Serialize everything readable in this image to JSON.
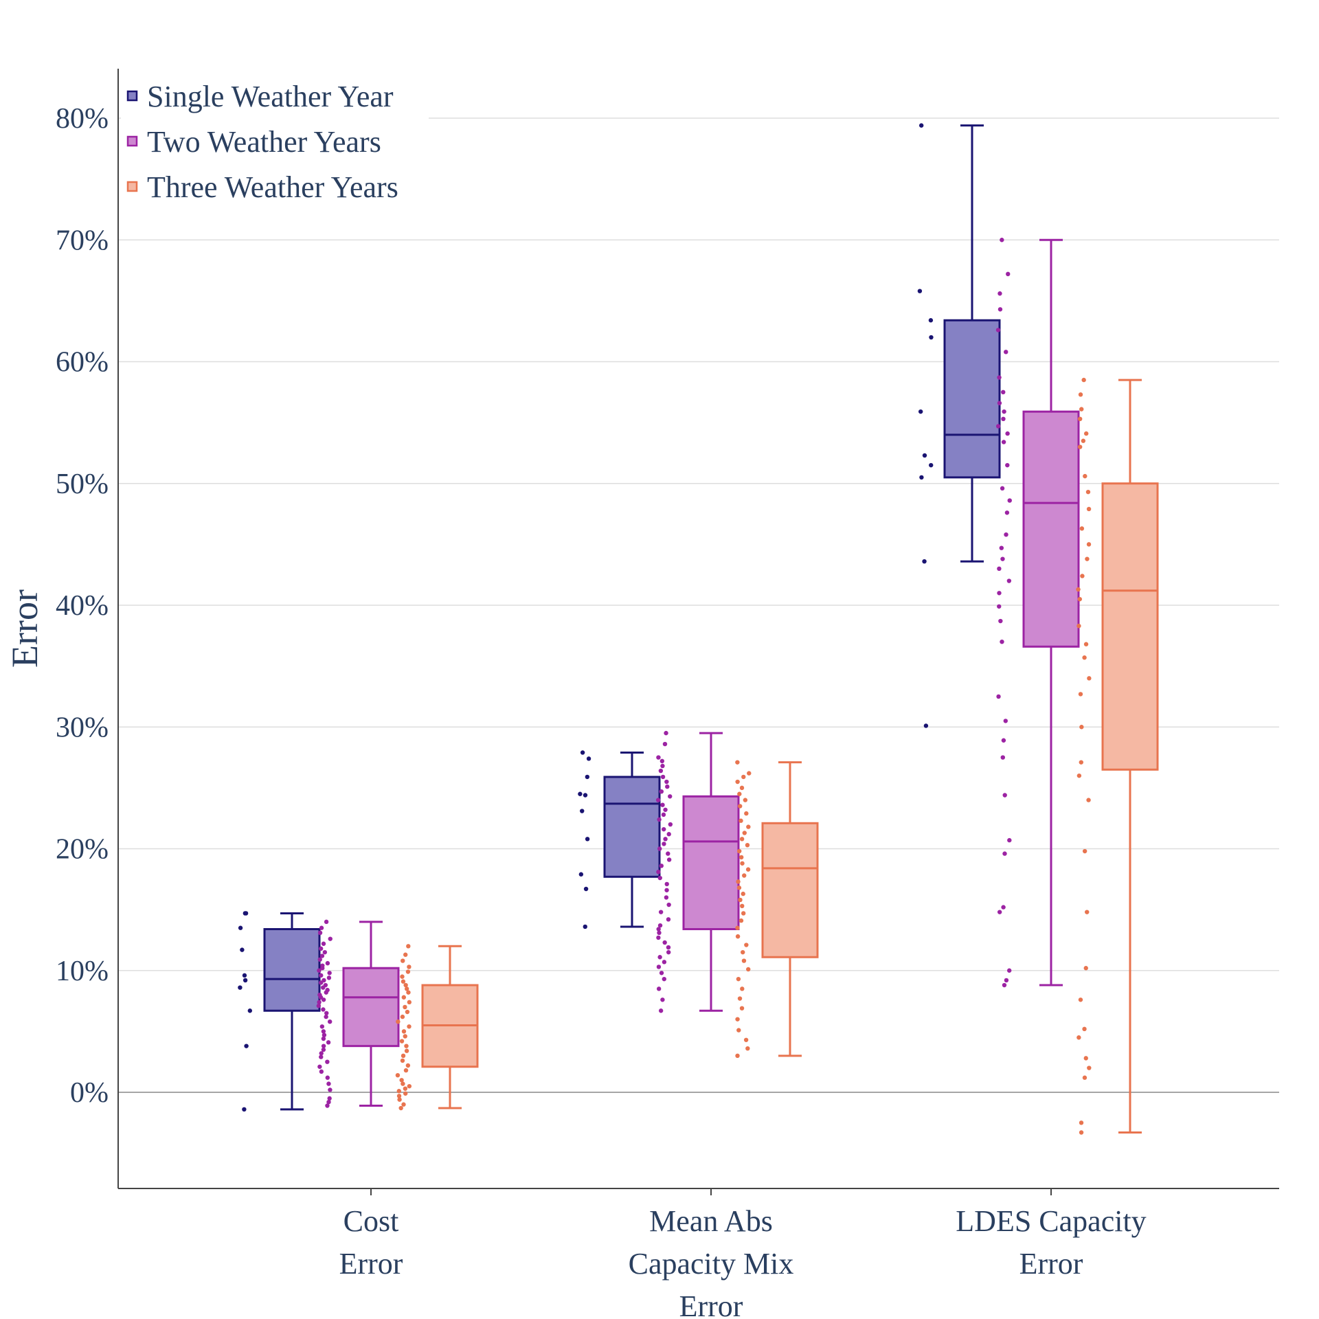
{
  "chart_data": {
    "type": "box",
    "ylabel": "Error",
    "ylim": [
      -0.08,
      0.84
    ],
    "yticks": [
      0,
      0.1,
      0.2,
      0.3,
      0.4,
      0.5,
      0.6,
      0.7,
      0.8
    ],
    "ytick_labels": [
      "0%",
      "10%",
      "20%",
      "30%",
      "40%",
      "50%",
      "60%",
      "70%",
      "80%"
    ],
    "grid": true,
    "legend_position": "top-left",
    "categories": [
      {
        "lines": [
          "Cost",
          "Error"
        ]
      },
      {
        "lines": [
          "Mean Abs",
          "Capacity Mix",
          "Error"
        ]
      },
      {
        "lines": [
          "LDES Capacity",
          "Error"
        ]
      }
    ],
    "series": [
      {
        "name": "Single Weather Year",
        "line_color": "#1a1472",
        "fill_color": "#8581c4",
        "boxes": [
          {
            "min": -0.014,
            "q1": 0.067,
            "median": 0.093,
            "q3": 0.134,
            "max": 0.147,
            "points": [
              0.147,
              0.147,
              0.135,
              0.117,
              0.096,
              0.092,
              0.086,
              0.067,
              0.038,
              -0.014
            ]
          },
          {
            "min": 0.136,
            "q1": 0.177,
            "median": 0.237,
            "q3": 0.259,
            "max": 0.279,
            "points": [
              0.279,
              0.274,
              0.259,
              0.245,
              0.244,
              0.231,
              0.208,
              0.179,
              0.167,
              0.136
            ]
          },
          {
            "min": 0.436,
            "q1": 0.505,
            "median": 0.54,
            "q3": 0.634,
            "max": 0.794,
            "points": [
              0.794,
              0.658,
              0.634,
              0.62,
              0.559,
              0.523,
              0.515,
              0.505,
              0.436,
              0.301
            ]
          }
        ]
      },
      {
        "name": "Two Weather Years",
        "line_color": "#9c23a3",
        "fill_color": "#cd88d0",
        "boxes": [
          {
            "min": -0.011,
            "q1": 0.038,
            "median": 0.078,
            "q3": 0.102,
            "max": 0.14,
            "points": [
              0.14,
              0.135,
              0.131,
              0.126,
              0.122,
              0.118,
              0.115,
              0.112,
              0.109,
              0.106,
              0.104,
              0.102,
              0.1,
              0.098,
              0.096,
              0.094,
              0.092,
              0.09,
              0.088,
              0.086,
              0.084,
              0.082,
              0.08,
              0.078,
              0.076,
              0.074,
              0.071,
              0.068,
              0.065,
              0.062,
              0.058,
              0.054,
              0.05,
              0.047,
              0.044,
              0.041,
              0.038,
              0.035,
              0.032,
              0.029,
              0.025,
              0.021,
              0.017,
              0.012,
              0.007,
              0.002,
              -0.005,
              -0.008,
              -0.011
            ]
          },
          {
            "min": 0.067,
            "q1": 0.134,
            "median": 0.206,
            "q3": 0.243,
            "max": 0.295,
            "points": [
              0.295,
              0.286,
              0.275,
              0.272,
              0.268,
              0.264,
              0.259,
              0.255,
              0.251,
              0.247,
              0.243,
              0.24,
              0.236,
              0.232,
              0.228,
              0.224,
              0.22,
              0.216,
              0.212,
              0.208,
              0.204,
              0.2,
              0.196,
              0.191,
              0.186,
              0.181,
              0.176,
              0.171,
              0.166,
              0.16,
              0.154,
              0.148,
              0.142,
              0.137,
              0.134,
              0.131,
              0.127,
              0.123,
              0.119,
              0.115,
              0.111,
              0.107,
              0.103,
              0.098,
              0.093,
              0.085,
              0.076,
              0.067
            ]
          },
          {
            "min": 0.088,
            "q1": 0.366,
            "median": 0.484,
            "q3": 0.559,
            "max": 0.7,
            "points": [
              0.7,
              0.672,
              0.656,
              0.643,
              0.626,
              0.608,
              0.587,
              0.575,
              0.566,
              0.559,
              0.553,
              0.547,
              0.541,
              0.534,
              0.515,
              0.496,
              0.486,
              0.476,
              0.458,
              0.447,
              0.438,
              0.43,
              0.42,
              0.41,
              0.399,
              0.387,
              0.37,
              0.325,
              0.305,
              0.289,
              0.275,
              0.244,
              0.207,
              0.196,
              0.152,
              0.148,
              0.1,
              0.092,
              0.088
            ]
          }
        ]
      },
      {
        "name": "Three Weather Years",
        "line_color": "#e8744f",
        "fill_color": "#f5b8a3",
        "boxes": [
          {
            "min": -0.013,
            "q1": 0.021,
            "median": 0.055,
            "q3": 0.088,
            "max": 0.12,
            "points": [
              0.12,
              0.113,
              0.108,
              0.103,
              0.099,
              0.095,
              0.091,
              0.088,
              0.085,
              0.082,
              0.078,
              0.074,
              0.07,
              0.066,
              0.062,
              0.058,
              0.054,
              0.05,
              0.046,
              0.042,
              0.038,
              0.034,
              0.03,
              0.026,
              0.022,
              0.018,
              0.014,
              0.01,
              0.007,
              0.005,
              0.003,
              0.001,
              -0.001,
              -0.003,
              -0.006,
              -0.01,
              -0.013
            ]
          },
          {
            "min": 0.03,
            "q1": 0.111,
            "median": 0.184,
            "q3": 0.221,
            "max": 0.271,
            "points": [
              0.271,
              0.262,
              0.259,
              0.255,
              0.25,
              0.245,
              0.24,
              0.235,
              0.229,
              0.223,
              0.218,
              0.213,
              0.208,
              0.203,
              0.198,
              0.193,
              0.188,
              0.183,
              0.178,
              0.173,
              0.168,
              0.163,
              0.158,
              0.153,
              0.147,
              0.141,
              0.135,
              0.128,
              0.121,
              0.115,
              0.108,
              0.101,
              0.093,
              0.085,
              0.077,
              0.069,
              0.06,
              0.051,
              0.043,
              0.036,
              0.03
            ]
          },
          {
            "min": -0.033,
            "q1": 0.265,
            "median": 0.412,
            "q3": 0.5,
            "max": 0.585,
            "points": [
              0.585,
              0.573,
              0.561,
              0.553,
              0.541,
              0.535,
              0.53,
              0.506,
              0.493,
              0.479,
              0.463,
              0.45,
              0.438,
              0.424,
              0.413,
              0.405,
              0.383,
              0.368,
              0.357,
              0.34,
              0.327,
              0.3,
              0.271,
              0.26,
              0.24,
              0.198,
              0.148,
              0.102,
              0.076,
              0.052,
              0.045,
              0.028,
              0.02,
              0.012,
              -0.025,
              -0.033
            ]
          }
        ]
      }
    ]
  }
}
